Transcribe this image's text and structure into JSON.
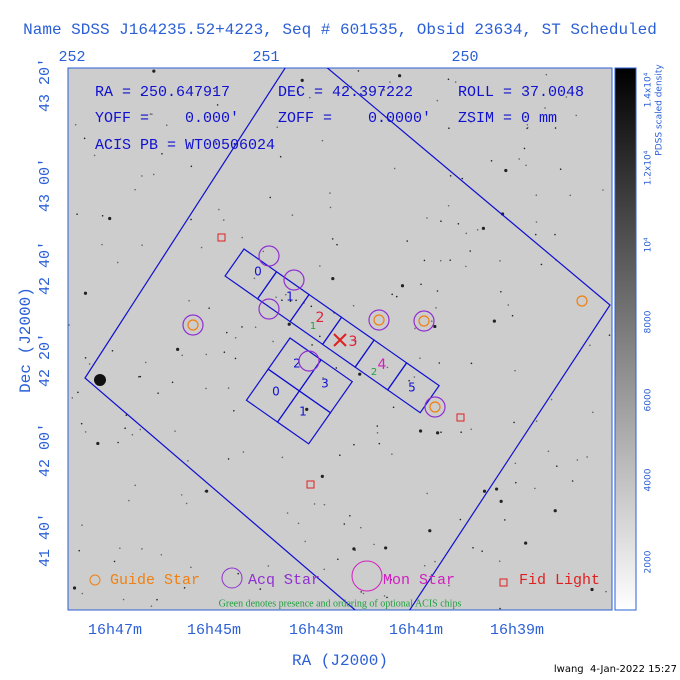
{
  "header": {
    "title": "Name SDSS J164235.52+4223, Seq # 601535, Obsid 23634, ST Scheduled"
  },
  "info": {
    "ra": "RA = 250.647917",
    "dec": "DEC = 42.397222",
    "roll": "ROLL = 37.0048",
    "yoff": "YOFF =    0.000'",
    "zoff": "ZOFF =    0.0000'",
    "zsim": "ZSIM = 0 mm",
    "acis_pb": "ACIS PB = WT00506024"
  },
  "axes": {
    "top_ticks": [
      "252",
      "251",
      "250"
    ],
    "left_ticks": [
      "43 20'",
      "43 00'",
      "42 40'",
      "42 20'",
      "42 00'",
      "41 40'"
    ],
    "bottom_ticks": [
      "16h47m",
      "16h45m",
      "16h43m",
      "16h41m",
      "16h39m"
    ],
    "x_label": "RA (J2000)",
    "y_label": "Dec (J2000)"
  },
  "colorbar": {
    "label": "PDSS scaled density",
    "ticks": [
      "1.4x10⁴",
      "1.2x10⁴",
      "10⁴",
      "8000",
      "6000",
      "4000",
      "2000"
    ]
  },
  "chips": {
    "acis_s": [
      "0",
      "1",
      "2",
      "3",
      "4",
      "5"
    ],
    "acis_i": [
      "2",
      "3",
      "0",
      "1"
    ],
    "optional": [
      "1",
      "2"
    ]
  },
  "legend": [
    "Guide Star",
    "Acq Star",
    "Mon Star",
    "Fid Light"
  ],
  "note": "Green denotes presence and ordering of optional ACIS chips",
  "footer": "lwang  4-Jan-2022 15:27"
}
